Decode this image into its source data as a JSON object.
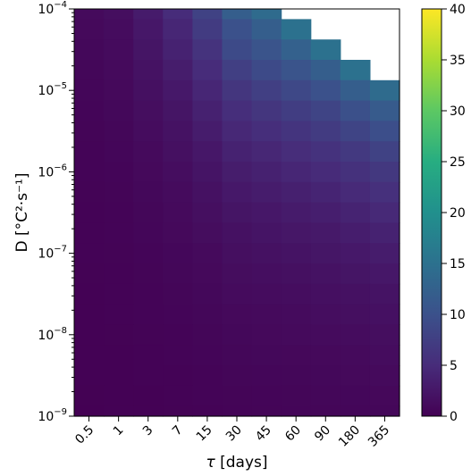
{
  "chart_data": {
    "type": "heatmap",
    "xlabel_symbol": "τ",
    "xlabel_unit": "[days]",
    "ylabel": "D [°C²·s⁻¹]",
    "x_categories": [
      "0.5",
      "1",
      "3",
      "7",
      "15",
      "30",
      "45",
      "60",
      "90",
      "180",
      "365"
    ],
    "y_range_log10": [
      -9,
      -4
    ],
    "y_ticks": [
      {
        "base": "10",
        "exp": "−9"
      },
      {
        "base": "10",
        "exp": "−8"
      },
      {
        "base": "10",
        "exp": "−7"
      },
      {
        "base": "10",
        "exp": "−6"
      },
      {
        "base": "10",
        "exp": "−5"
      },
      {
        "base": "10",
        "exp": "−4"
      }
    ],
    "colorscale": "viridis",
    "colorbar": {
      "min": 0,
      "max": 40,
      "ticks": [
        "0",
        "5",
        "10",
        "15",
        "20",
        "25",
        "30",
        "35",
        "40"
      ]
    },
    "missing_cells_note": "white = no data",
    "rows_top_to_bottom_D_log10": [
      -4.0,
      -4.25,
      -4.5,
      -4.75,
      -5.0,
      -5.25,
      -5.5,
      -5.75,
      -6.0,
      -6.25,
      -6.5,
      -6.75,
      -7.0,
      -7.25,
      -7.5,
      -7.75,
      -8.0,
      -8.25,
      -8.5,
      -8.75,
      -9.0
    ],
    "values": [
      [
        1.0,
        1.5,
        3.0,
        5.0,
        8.0,
        12.0,
        14.0,
        null,
        null,
        null,
        null
      ],
      [
        0.9,
        1.3,
        2.6,
        4.3,
        7.0,
        10.0,
        12.0,
        15.0,
        null,
        null,
        null
      ],
      [
        0.8,
        1.2,
        2.3,
        3.8,
        6.0,
        9.0,
        10.5,
        12.5,
        15.0,
        null,
        null
      ],
      [
        0.7,
        1.0,
        2.0,
        3.2,
        5.0,
        7.5,
        9.0,
        10.5,
        12.0,
        15.0,
        null
      ],
      [
        0.6,
        0.9,
        1.7,
        2.7,
        4.3,
        6.3,
        7.5,
        8.8,
        10.0,
        12.0,
        14.0
      ],
      [
        0.5,
        0.8,
        1.5,
        2.3,
        3.7,
        5.3,
        6.3,
        7.3,
        8.3,
        9.8,
        11.5
      ],
      [
        0.45,
        0.7,
        1.3,
        2.0,
        3.1,
        4.5,
        5.3,
        6.1,
        7.0,
        8.2,
        9.6
      ],
      [
        0.4,
        0.6,
        1.1,
        1.7,
        2.6,
        3.8,
        4.4,
        5.1,
        5.8,
        6.8,
        8.0
      ],
      [
        0.35,
        0.5,
        0.95,
        1.45,
        2.2,
        3.2,
        3.7,
        4.3,
        4.9,
        5.7,
        6.6
      ],
      [
        0.3,
        0.45,
        0.8,
        1.2,
        1.9,
        2.7,
        3.1,
        3.6,
        4.1,
        4.8,
        5.5
      ],
      [
        0.25,
        0.4,
        0.7,
        1.0,
        1.6,
        2.3,
        2.6,
        3.0,
        3.4,
        4.0,
        4.6
      ],
      [
        0.22,
        0.35,
        0.6,
        0.9,
        1.35,
        1.9,
        2.2,
        2.5,
        2.8,
        3.3,
        3.8
      ],
      [
        0.2,
        0.3,
        0.5,
        0.75,
        1.1,
        1.6,
        1.85,
        2.1,
        2.4,
        2.7,
        3.1
      ],
      [
        0.18,
        0.27,
        0.45,
        0.65,
        0.95,
        1.35,
        1.55,
        1.75,
        2.0,
        2.3,
        2.6
      ],
      [
        0.16,
        0.24,
        0.4,
        0.55,
        0.8,
        1.15,
        1.3,
        1.45,
        1.65,
        1.9,
        2.15
      ],
      [
        0.14,
        0.21,
        0.35,
        0.47,
        0.68,
        0.95,
        1.1,
        1.2,
        1.4,
        1.6,
        1.8
      ],
      [
        0.12,
        0.18,
        0.3,
        0.4,
        0.58,
        0.8,
        0.9,
        1.0,
        1.15,
        1.3,
        1.5
      ],
      [
        0.1,
        0.15,
        0.25,
        0.34,
        0.48,
        0.68,
        0.76,
        0.85,
        0.95,
        1.1,
        1.25
      ],
      [
        0.08,
        0.12,
        0.2,
        0.28,
        0.4,
        0.56,
        0.63,
        0.7,
        0.8,
        0.9,
        1.0
      ],
      [
        0.06,
        0.1,
        0.16,
        0.23,
        0.33,
        0.46,
        0.52,
        0.58,
        0.65,
        0.74,
        0.85
      ],
      [
        0.05,
        0.08,
        0.13,
        0.19,
        0.27,
        0.38,
        0.43,
        0.48,
        0.54,
        0.61,
        0.7
      ]
    ]
  }
}
